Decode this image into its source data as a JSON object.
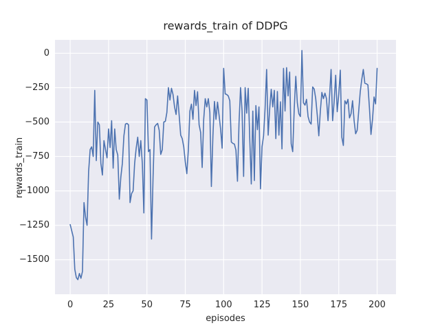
{
  "figure": {
    "title": "rewards_train of DDPG",
    "xlabel": "episodes",
    "ylabel": "rewards_train"
  },
  "colors": {
    "line": "#4c72b0",
    "axes_background": "#eaeaf2",
    "grid": "#ffffff",
    "text": "#262626",
    "figure_background": "#ffffff"
  },
  "chart_data": {
    "type": "line",
    "title": "rewards_train of DDPG",
    "xlabel": "episodes",
    "ylabel": "rewards_train",
    "legend": false,
    "grid": true,
    "xlim": [
      -9.9,
      212.3
    ],
    "ylim": [
      -1751,
      97
    ],
    "xticks": [
      0,
      25,
      50,
      75,
      100,
      125,
      150,
      175,
      200
    ],
    "xtick_labels": [
      "0",
      "25",
      "50",
      "75",
      "100",
      "125",
      "150",
      "175",
      "200"
    ],
    "yticks": [
      0,
      -250,
      -500,
      -750,
      -1000,
      -1250,
      -1500
    ],
    "ytick_labels": [
      "0",
      "−250",
      "−500",
      "−750",
      "−1000",
      "−1250",
      "−1500"
    ],
    "x_start": 0,
    "x_step": 1,
    "series": [
      {
        "name": "rewards_train",
        "color": "#4c72b0",
        "values": [
          -1245,
          -1290,
          -1335,
          -1570,
          -1630,
          -1645,
          -1600,
          -1635,
          -1585,
          -1085,
          -1190,
          -1250,
          -860,
          -700,
          -680,
          -750,
          -270,
          -780,
          -500,
          -520,
          -800,
          -885,
          -635,
          -700,
          -760,
          -550,
          -685,
          -490,
          -835,
          -550,
          -700,
          -740,
          -1060,
          -900,
          -800,
          -600,
          -515,
          -510,
          -520,
          -1085,
          -1020,
          -1000,
          -800,
          -690,
          -610,
          -750,
          -635,
          -800,
          -1160,
          -330,
          -340,
          -715,
          -700,
          -1350,
          -900,
          -535,
          -520,
          -510,
          -560,
          -735,
          -700,
          -500,
          -495,
          -430,
          -250,
          -340,
          -255,
          -300,
          -390,
          -445,
          -310,
          -450,
          -595,
          -620,
          -680,
          -790,
          -875,
          -700,
          -420,
          -370,
          -480,
          -270,
          -380,
          -280,
          -520,
          -575,
          -830,
          -480,
          -330,
          -390,
          -330,
          -430,
          -968,
          -600,
          -350,
          -480,
          -355,
          -450,
          -550,
          -690,
          -110,
          -295,
          -300,
          -310,
          -345,
          -645,
          -655,
          -660,
          -705,
          -930,
          -510,
          -250,
          -420,
          -895,
          -250,
          -435,
          -255,
          -620,
          -950,
          -420,
          -925,
          -380,
          -555,
          -390,
          -985,
          -680,
          -600,
          -400,
          -118,
          -595,
          -403,
          -262,
          -390,
          -270,
          -620,
          -278,
          -595,
          -353,
          -695,
          -110,
          -420,
          -105,
          -310,
          -137,
          -657,
          -715,
          -400,
          -168,
          -360,
          -440,
          -460,
          20,
          -360,
          -377,
          -335,
          -460,
          -500,
          -515,
          -245,
          -260,
          -330,
          -450,
          -600,
          -420,
          -285,
          -330,
          -290,
          -330,
          -490,
          -310,
          -118,
          -490,
          -350,
          -160,
          -425,
          -300,
          -123,
          -610,
          -670,
          -345,
          -368,
          -335,
          -470,
          -440,
          -345,
          -490,
          -585,
          -560,
          -420,
          -280,
          -190,
          -118,
          -218,
          -222,
          -230,
          -400,
          -590,
          -480,
          -318,
          -368,
          -110
        ]
      }
    ]
  }
}
